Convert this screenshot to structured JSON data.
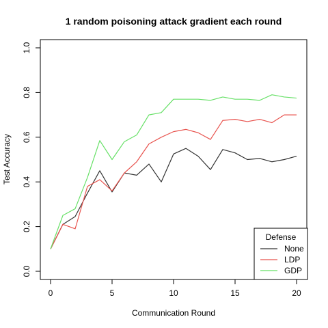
{
  "chart_data": {
    "type": "line",
    "title": "1 random poisoning attack gradient each round",
    "xlabel": "Communication Round",
    "ylabel": "Test Accuracy",
    "xlim": [
      0,
      20
    ],
    "ylim": [
      0,
      1.0
    ],
    "x_ticks": [
      "0",
      "5",
      "10",
      "15",
      "20"
    ],
    "y_ticks": [
      "0.0",
      "0.2",
      "0.4",
      "0.6",
      "0.8",
      "1.0"
    ],
    "x": [
      0,
      1,
      2,
      3,
      4,
      5,
      6,
      7,
      8,
      9,
      10,
      11,
      12,
      13,
      14,
      15,
      16,
      17,
      18,
      19,
      20
    ],
    "series": [
      {
        "name": "None",
        "color": "#333333",
        "values": [
          0.1,
          0.21,
          0.245,
          0.35,
          0.45,
          0.355,
          0.44,
          0.43,
          0.48,
          0.4,
          0.525,
          0.55,
          0.515,
          0.455,
          0.545,
          0.53,
          0.5,
          0.505,
          0.49,
          0.5,
          0.515
        ]
      },
      {
        "name": "LDP",
        "color": "#e8534e",
        "values": [
          0.1,
          0.21,
          0.19,
          0.38,
          0.41,
          0.36,
          0.44,
          0.49,
          0.57,
          0.6,
          0.625,
          0.635,
          0.62,
          0.59,
          0.675,
          0.68,
          0.67,
          0.68,
          0.665,
          0.7,
          0.7
        ]
      },
      {
        "name": "GDP",
        "color": "#66e066",
        "values": [
          0.1,
          0.25,
          0.28,
          0.42,
          0.585,
          0.5,
          0.58,
          0.61,
          0.7,
          0.71,
          0.77,
          0.77,
          0.77,
          0.765,
          0.78,
          0.77,
          0.77,
          0.765,
          0.79,
          0.78,
          0.775
        ]
      }
    ],
    "legend": {
      "title": "Defense",
      "placement": "bottom-right"
    },
    "grid": false
  }
}
